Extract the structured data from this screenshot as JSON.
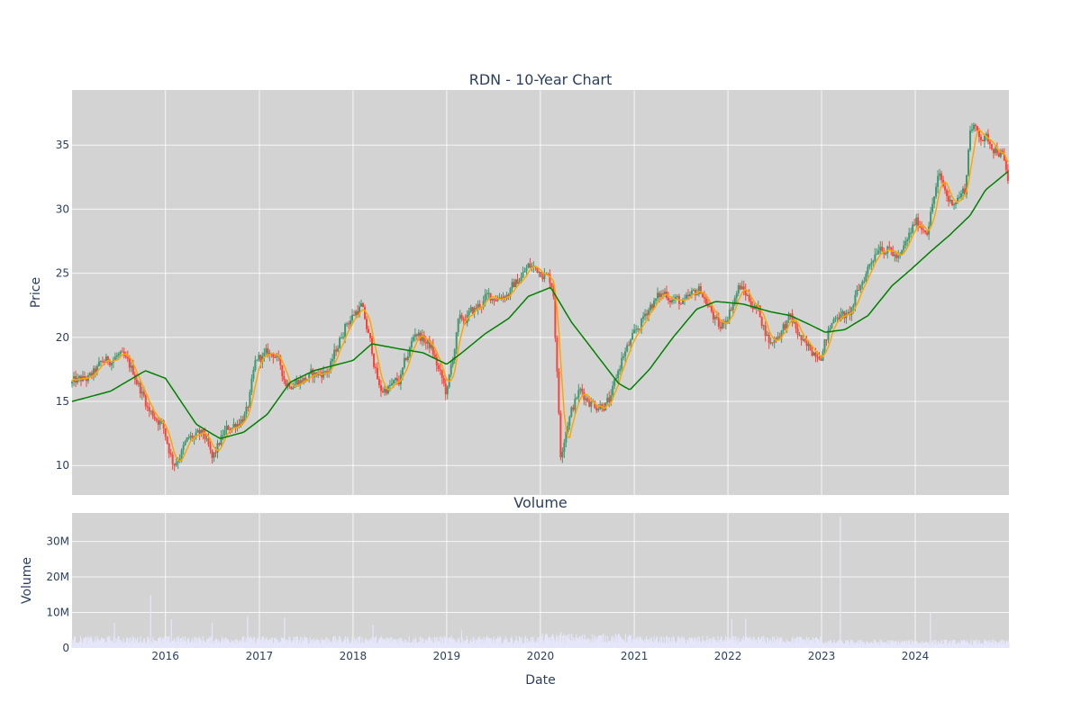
{
  "chart_data": [
    {
      "type": "candlestick",
      "title": "RDN - 10-Year Chart",
      "ylabel": "Price",
      "xlabel": "",
      "xlim": [
        "2015-01-02",
        "2024-12-31"
      ],
      "ylim": [
        7.7,
        39.3
      ],
      "yticks": [
        10,
        15,
        20,
        25,
        30,
        35
      ],
      "xticks": [
        "2016",
        "2017",
        "2018",
        "2019",
        "2020",
        "2021",
        "2022",
        "2023",
        "2024"
      ],
      "grid": true,
      "plot_bgcolor": "#d3d3d3",
      "colors": {
        "increasing": "#3d9970",
        "decreasing": "#ff4136",
        "ma_short": "#ffa500",
        "ma_long": "#008000"
      },
      "price_path": [
        [
          "2015-01-02",
          16.4
        ],
        [
          "2015-03-15",
          16.8
        ],
        [
          "2015-05-01",
          18.0
        ],
        [
          "2015-07-01",
          18.6
        ],
        [
          "2015-09-01",
          17.2
        ],
        [
          "2015-11-01",
          14.2
        ],
        [
          "2015-12-15",
          13.5
        ],
        [
          "2016-02-01",
          10.2
        ],
        [
          "2016-04-01",
          12.0
        ],
        [
          "2016-06-01",
          12.3
        ],
        [
          "2016-07-01",
          10.3
        ],
        [
          "2016-08-15",
          12.5
        ],
        [
          "2016-10-15",
          13.6
        ],
        [
          "2016-11-15",
          14.2
        ],
        [
          "2016-12-20",
          18.2
        ],
        [
          "2017-03-01",
          18.8
        ],
        [
          "2017-04-15",
          16.5
        ],
        [
          "2017-07-01",
          16.8
        ],
        [
          "2017-10-01",
          17.5
        ],
        [
          "2017-12-01",
          21.0
        ],
        [
          "2018-02-01",
          22.5
        ],
        [
          "2018-03-15",
          19.0
        ],
        [
          "2018-04-15",
          15.8
        ],
        [
          "2018-07-01",
          16.5
        ],
        [
          "2018-09-01",
          20.5
        ],
        [
          "2018-11-01",
          19.2
        ],
        [
          "2019-01-01",
          15.5
        ],
        [
          "2019-02-15",
          21.0
        ],
        [
          "2019-04-15",
          22.0
        ],
        [
          "2019-06-01",
          23.0
        ],
        [
          "2019-09-01",
          23.5
        ],
        [
          "2019-11-15",
          25.5
        ],
        [
          "2020-01-15",
          25.2
        ],
        [
          "2020-02-20",
          24.0
        ],
        [
          "2020-03-20",
          11.0
        ],
        [
          "2020-04-15",
          13.5
        ],
        [
          "2020-06-01",
          15.8
        ],
        [
          "2020-08-01",
          14.8
        ],
        [
          "2020-10-01",
          15.0
        ],
        [
          "2020-11-15",
          18.5
        ],
        [
          "2021-01-01",
          20.0
        ],
        [
          "2021-03-01",
          22.5
        ],
        [
          "2021-05-01",
          23.5
        ],
        [
          "2021-07-15",
          22.5
        ],
        [
          "2021-09-15",
          23.8
        ],
        [
          "2021-12-01",
          20.5
        ],
        [
          "2022-02-15",
          24.0
        ],
        [
          "2022-05-01",
          22.0
        ],
        [
          "2022-06-15",
          19.5
        ],
        [
          "2022-09-01",
          21.5
        ],
        [
          "2022-11-01",
          19.0
        ],
        [
          "2023-01-01",
          19.0
        ],
        [
          "2023-03-01",
          22.0
        ],
        [
          "2023-04-15",
          21.5
        ],
        [
          "2023-07-01",
          25.5
        ],
        [
          "2023-08-15",
          27.5
        ],
        [
          "2023-11-01",
          26.0
        ],
        [
          "2024-01-01",
          29.0
        ],
        [
          "2024-02-15",
          28.5
        ],
        [
          "2024-04-01",
          32.5
        ],
        [
          "2024-05-15",
          30.5
        ],
        [
          "2024-07-15",
          31.5
        ],
        [
          "2024-08-01",
          36.5
        ],
        [
          "2024-10-01",
          35.5
        ],
        [
          "2024-12-01",
          34.5
        ],
        [
          "2024-12-31",
          31.8
        ]
      ],
      "ma_long_path": [
        [
          "2015-01-02",
          15.0
        ],
        [
          "2015-06-01",
          15.8
        ],
        [
          "2015-10-15",
          17.4
        ],
        [
          "2016-01-01",
          16.8
        ],
        [
          "2016-05-01",
          13.2
        ],
        [
          "2016-08-01",
          12.1
        ],
        [
          "2016-11-01",
          12.6
        ],
        [
          "2017-02-01",
          14.0
        ],
        [
          "2017-05-01",
          16.5
        ],
        [
          "2017-08-01",
          17.4
        ],
        [
          "2018-01-01",
          18.2
        ],
        [
          "2018-03-15",
          19.5
        ],
        [
          "2018-07-01",
          19.1
        ],
        [
          "2018-10-01",
          18.8
        ],
        [
          "2019-01-01",
          17.9
        ],
        [
          "2019-03-01",
          18.8
        ],
        [
          "2019-06-01",
          20.3
        ],
        [
          "2019-09-01",
          21.5
        ],
        [
          "2019-11-15",
          23.2
        ],
        [
          "2020-02-10",
          23.9
        ],
        [
          "2020-05-01",
          21.2
        ],
        [
          "2020-08-01",
          18.8
        ],
        [
          "2020-11-01",
          16.4
        ],
        [
          "2020-12-15",
          15.9
        ],
        [
          "2021-03-01",
          17.5
        ],
        [
          "2021-06-01",
          20.0
        ],
        [
          "2021-09-01",
          22.2
        ],
        [
          "2021-11-15",
          22.8
        ],
        [
          "2022-03-01",
          22.6
        ],
        [
          "2022-06-15",
          22.0
        ],
        [
          "2022-09-01",
          21.7
        ],
        [
          "2022-11-15",
          21.0
        ],
        [
          "2023-01-15",
          20.4
        ],
        [
          "2023-04-01",
          20.6
        ],
        [
          "2023-07-01",
          21.7
        ],
        [
          "2023-10-01",
          24.0
        ],
        [
          "2023-12-15",
          25.3
        ],
        [
          "2024-03-01",
          26.7
        ],
        [
          "2024-05-15",
          28.0
        ],
        [
          "2024-08-01",
          29.5
        ],
        [
          "2024-10-01",
          31.5
        ],
        [
          "2024-12-31",
          33.0
        ]
      ]
    },
    {
      "type": "bar",
      "title": "Volume",
      "ylabel": "Volume",
      "xlabel": "Date",
      "xlim": [
        "2015-01-02",
        "2024-12-31"
      ],
      "ylim": [
        0,
        38000000
      ],
      "yticks": [
        0,
        10000000,
        20000000,
        30000000
      ],
      "ytick_labels": [
        "0",
        "10M",
        "20M",
        "30M"
      ],
      "xticks": [
        "2016",
        "2017",
        "2018",
        "2019",
        "2020",
        "2021",
        "2022",
        "2023",
        "2024"
      ],
      "grid": true,
      "plot_bgcolor": "#d3d3d3",
      "bar_color": "#e6e6fa",
      "peaks": [
        [
          "2015-06-15",
          7000000
        ],
        [
          "2015-11-05",
          15000000
        ],
        [
          "2016-01-25",
          8000000
        ],
        [
          "2016-06-30",
          7000000
        ],
        [
          "2016-11-15",
          9000000
        ],
        [
          "2017-04-10",
          8500000
        ],
        [
          "2018-03-20",
          6500000
        ],
        [
          "2019-03-01",
          5000000
        ],
        [
          "2020-03-20",
          4500000
        ],
        [
          "2022-01-15",
          8200000
        ],
        [
          "2022-03-10",
          8200000
        ],
        [
          "2023-03-15",
          37000000
        ],
        [
          "2024-03-01",
          10000000
        ]
      ]
    }
  ]
}
